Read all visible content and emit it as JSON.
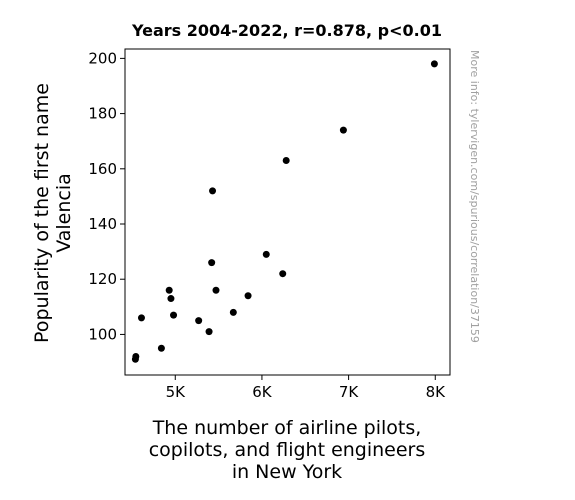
{
  "chart_data": {
    "type": "scatter",
    "title": "Years 2004-2022, r=0.878, p<0.01",
    "xlabel": [
      "The number of airline pilots,",
      "copilots, and flight engineers",
      "in New York"
    ],
    "ylabel": [
      "Popularity of the first name",
      "Valencia"
    ],
    "watermark": "More info: tylervigen.com/spurious/correlation/37159",
    "xlim": [
      4420,
      8170
    ],
    "ylim": [
      85.3,
      203.4
    ],
    "xticks": [
      5000,
      6000,
      7000,
      8000
    ],
    "xtick_labels": [
      "5K",
      "6K",
      "7K",
      "8K"
    ],
    "yticks": [
      100,
      120,
      140,
      160,
      180,
      200
    ],
    "ytick_labels": [
      "100",
      "120",
      "140",
      "160",
      "180",
      "200"
    ],
    "grid": false,
    "marker_color": "#000000",
    "points": [
      {
        "x": 4540,
        "y": 91
      },
      {
        "x": 4545,
        "y": 92
      },
      {
        "x": 4610,
        "y": 106
      },
      {
        "x": 4840,
        "y": 95
      },
      {
        "x": 4930,
        "y": 116
      },
      {
        "x": 4950,
        "y": 113
      },
      {
        "x": 4980,
        "y": 107
      },
      {
        "x": 5270,
        "y": 105
      },
      {
        "x": 5390,
        "y": 101
      },
      {
        "x": 5420,
        "y": 126
      },
      {
        "x": 5430,
        "y": 152
      },
      {
        "x": 5470,
        "y": 116
      },
      {
        "x": 5670,
        "y": 108
      },
      {
        "x": 5840,
        "y": 114
      },
      {
        "x": 6050,
        "y": 129
      },
      {
        "x": 6240,
        "y": 122
      },
      {
        "x": 6280,
        "y": 163
      },
      {
        "x": 6940,
        "y": 174
      },
      {
        "x": 7990,
        "y": 198
      }
    ]
  }
}
